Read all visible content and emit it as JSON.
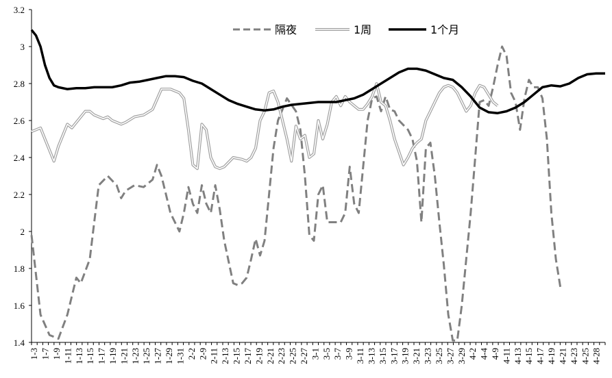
{
  "chart_data": {
    "type": "line",
    "title": "",
    "xlabel": "",
    "ylabel": "",
    "ylim": [
      1.4,
      3.2
    ],
    "yticks": [
      "3.2",
      "3",
      "2.8",
      "2.6",
      "2.4",
      "2.2",
      "2",
      "1.8",
      "1.6",
      "1.4"
    ],
    "grid": false,
    "legend_position": "top-center",
    "x_tick_labels": [
      "1-3",
      "1-7",
      "1-9",
      "1-11",
      "1-13",
      "1-15",
      "1-17",
      "1-19",
      "1-21",
      "1-23",
      "1-25",
      "1-27",
      "1-29",
      "1-31",
      "2-2",
      "2-9",
      "2-11",
      "2-13",
      "2-15",
      "2-17",
      "2-19",
      "2-21",
      "2-23",
      "2-25",
      "2-27",
      "3-1",
      "3-5",
      "3-7",
      "3-9",
      "3-11",
      "3-13",
      "3-15",
      "3-17",
      "3-19",
      "3-21",
      "3-23",
      "3-25",
      "3-27",
      "3-29",
      "4-2",
      "4-4",
      "4-9",
      "4-11",
      "4-13",
      "4-15",
      "4-17",
      "4-19",
      "4-21",
      "4-23",
      "4-25",
      "4-28"
    ],
    "series": [
      {
        "name": "隔夜",
        "color": "#808080",
        "style": "dashed",
        "values": [
          [
            0,
            1.98
          ],
          [
            2,
            1.55
          ],
          [
            4,
            1.44
          ],
          [
            6,
            1.42
          ],
          [
            8,
            1.55
          ],
          [
            10,
            1.75
          ],
          [
            11,
            1.72
          ],
          [
            13,
            1.85
          ],
          [
            14,
            2.05
          ],
          [
            15,
            2.25
          ],
          [
            17,
            2.3
          ],
          [
            19,
            2.25
          ],
          [
            20,
            2.18
          ],
          [
            21,
            2.22
          ],
          [
            23,
            2.25
          ],
          [
            25,
            2.24
          ],
          [
            27,
            2.28
          ],
          [
            28,
            2.36
          ],
          [
            29,
            2.3
          ],
          [
            30,
            2.2
          ],
          [
            31,
            2.1
          ],
          [
            33,
            2.0
          ],
          [
            34,
            2.1
          ],
          [
            35,
            2.24
          ],
          [
            36,
            2.15
          ],
          [
            37,
            2.1
          ],
          [
            38,
            2.25
          ],
          [
            39,
            2.15
          ],
          [
            40,
            2.1
          ],
          [
            41,
            2.25
          ],
          [
            42,
            2.12
          ],
          [
            43,
            1.95
          ],
          [
            45,
            1.72
          ],
          [
            46,
            1.71
          ],
          [
            47,
            1.72
          ],
          [
            48,
            1.75
          ],
          [
            49,
            1.85
          ],
          [
            50,
            1.96
          ],
          [
            51,
            1.87
          ],
          [
            52,
            1.95
          ],
          [
            53,
            2.2
          ],
          [
            54,
            2.45
          ],
          [
            55,
            2.6
          ],
          [
            56,
            2.66
          ],
          [
            57,
            2.72
          ],
          [
            59,
            2.65
          ],
          [
            60,
            2.55
          ],
          [
            61,
            2.3
          ],
          [
            62,
            1.98
          ],
          [
            63,
            1.95
          ],
          [
            64,
            2.2
          ],
          [
            65,
            2.25
          ],
          [
            66,
            2.05
          ],
          [
            68,
            2.05
          ],
          [
            69,
            2.05
          ],
          [
            70,
            2.1
          ],
          [
            71,
            2.35
          ],
          [
            72,
            2.15
          ],
          [
            73,
            2.1
          ],
          [
            74,
            2.35
          ],
          [
            75,
            2.6
          ],
          [
            76,
            2.72
          ],
          [
            77,
            2.73
          ],
          [
            78,
            2.65
          ],
          [
            79,
            2.73
          ],
          [
            80,
            2.66
          ],
          [
            81,
            2.65
          ],
          [
            82,
            2.6
          ],
          [
            84,
            2.55
          ],
          [
            85,
            2.5
          ],
          [
            86,
            2.38
          ],
          [
            87,
            2.05
          ],
          [
            88,
            2.45
          ],
          [
            89,
            2.48
          ],
          [
            90,
            2.3
          ],
          [
            91,
            2.05
          ],
          [
            92,
            1.82
          ],
          [
            93,
            1.55
          ],
          [
            94,
            1.41
          ],
          [
            95,
            1.41
          ],
          [
            96,
            1.6
          ],
          [
            97,
            1.85
          ],
          [
            98,
            2.1
          ],
          [
            99,
            2.4
          ],
          [
            100,
            2.7
          ],
          [
            101,
            2.71
          ],
          [
            102,
            2.68
          ],
          [
            103,
            2.78
          ],
          [
            104,
            2.9
          ],
          [
            105,
            3.0
          ],
          [
            106,
            2.95
          ],
          [
            107,
            2.75
          ],
          [
            108,
            2.7
          ],
          [
            109,
            2.55
          ],
          [
            110,
            2.72
          ],
          [
            111,
            2.82
          ],
          [
            112,
            2.78
          ],
          [
            113,
            2.78
          ],
          [
            114,
            2.72
          ],
          [
            115,
            2.5
          ],
          [
            116,
            2.1
          ],
          [
            117,
            1.85
          ],
          [
            118,
            1.7
          ]
        ]
      },
      {
        "name": "1周",
        "color": "#a0a0a0",
        "style": "double",
        "values": [
          [
            0,
            2.54
          ],
          [
            2,
            2.56
          ],
          [
            3,
            2.5
          ],
          [
            5,
            2.38
          ],
          [
            6,
            2.46
          ],
          [
            8,
            2.58
          ],
          [
            9,
            2.56
          ],
          [
            11,
            2.62
          ],
          [
            12,
            2.65
          ],
          [
            13,
            2.65
          ],
          [
            14,
            2.63
          ],
          [
            16,
            2.61
          ],
          [
            17,
            2.62
          ],
          [
            18,
            2.6
          ],
          [
            20,
            2.58
          ],
          [
            21,
            2.59
          ],
          [
            23,
            2.62
          ],
          [
            25,
            2.63
          ],
          [
            27,
            2.66
          ],
          [
            29,
            2.77
          ],
          [
            31,
            2.77
          ],
          [
            33,
            2.75
          ],
          [
            34,
            2.72
          ],
          [
            35,
            2.55
          ],
          [
            36,
            2.36
          ],
          [
            37,
            2.34
          ],
          [
            38,
            2.58
          ],
          [
            39,
            2.55
          ],
          [
            40,
            2.4
          ],
          [
            41,
            2.35
          ],
          [
            42,
            2.34
          ],
          [
            43,
            2.35
          ],
          [
            45,
            2.4
          ],
          [
            47,
            2.39
          ],
          [
            48,
            2.38
          ],
          [
            49,
            2.4
          ],
          [
            50,
            2.45
          ],
          [
            51,
            2.6
          ],
          [
            52,
            2.65
          ],
          [
            53,
            2.75
          ],
          [
            54,
            2.76
          ],
          [
            55,
            2.7
          ],
          [
            56,
            2.6
          ],
          [
            57,
            2.5
          ],
          [
            58,
            2.38
          ],
          [
            59,
            2.57
          ],
          [
            60,
            2.5
          ],
          [
            61,
            2.52
          ],
          [
            62,
            2.4
          ],
          [
            63,
            2.42
          ],
          [
            64,
            2.6
          ],
          [
            65,
            2.5
          ],
          [
            66,
            2.58
          ],
          [
            67,
            2.7
          ],
          [
            68,
            2.73
          ],
          [
            69,
            2.68
          ],
          [
            70,
            2.73
          ],
          [
            71,
            2.7
          ],
          [
            72,
            2.68
          ],
          [
            73,
            2.66
          ],
          [
            74,
            2.66
          ],
          [
            75,
            2.69
          ],
          [
            76,
            2.73
          ],
          [
            77,
            2.8
          ],
          [
            78,
            2.7
          ],
          [
            79,
            2.68
          ],
          [
            80,
            2.6
          ],
          [
            81,
            2.5
          ],
          [
            82,
            2.43
          ],
          [
            83,
            2.36
          ],
          [
            84,
            2.4
          ],
          [
            85,
            2.45
          ],
          [
            86,
            2.48
          ],
          [
            87,
            2.5
          ],
          [
            88,
            2.6
          ],
          [
            89,
            2.65
          ],
          [
            90,
            2.7
          ],
          [
            91,
            2.75
          ],
          [
            92,
            2.78
          ],
          [
            93,
            2.79
          ],
          [
            94,
            2.78
          ],
          [
            95,
            2.75
          ],
          [
            96,
            2.7
          ],
          [
            97,
            2.65
          ],
          [
            98,
            2.68
          ],
          [
            99,
            2.75
          ],
          [
            100,
            2.79
          ],
          [
            101,
            2.78
          ],
          [
            102,
            2.74
          ],
          [
            103,
            2.7
          ],
          [
            104,
            2.68
          ]
        ]
      },
      {
        "name": "1个月",
        "color": "#000000",
        "style": "solid",
        "values": [
          [
            0,
            3.09
          ],
          [
            1,
            3.06
          ],
          [
            2,
            3.0
          ],
          [
            3,
            2.9
          ],
          [
            4,
            2.83
          ],
          [
            5,
            2.79
          ],
          [
            6,
            2.78
          ],
          [
            8,
            2.77
          ],
          [
            10,
            2.775
          ],
          [
            12,
            2.775
          ],
          [
            14,
            2.78
          ],
          [
            16,
            2.78
          ],
          [
            18,
            2.78
          ],
          [
            20,
            2.79
          ],
          [
            22,
            2.805
          ],
          [
            24,
            2.81
          ],
          [
            26,
            2.82
          ],
          [
            28,
            2.83
          ],
          [
            30,
            2.84
          ],
          [
            32,
            2.84
          ],
          [
            34,
            2.835
          ],
          [
            36,
            2.815
          ],
          [
            38,
            2.8
          ],
          [
            40,
            2.77
          ],
          [
            42,
            2.74
          ],
          [
            44,
            2.71
          ],
          [
            46,
            2.69
          ],
          [
            48,
            2.675
          ],
          [
            50,
            2.66
          ],
          [
            52,
            2.655
          ],
          [
            54,
            2.66
          ],
          [
            56,
            2.675
          ],
          [
            58,
            2.685
          ],
          [
            60,
            2.69
          ],
          [
            62,
            2.695
          ],
          [
            64,
            2.7
          ],
          [
            66,
            2.7
          ],
          [
            68,
            2.7
          ],
          [
            70,
            2.71
          ],
          [
            72,
            2.72
          ],
          [
            74,
            2.74
          ],
          [
            76,
            2.77
          ],
          [
            78,
            2.8
          ],
          [
            80,
            2.83
          ],
          [
            82,
            2.86
          ],
          [
            84,
            2.88
          ],
          [
            86,
            2.88
          ],
          [
            88,
            2.87
          ],
          [
            90,
            2.85
          ],
          [
            92,
            2.83
          ],
          [
            94,
            2.82
          ],
          [
            96,
            2.78
          ],
          [
            98,
            2.73
          ],
          [
            100,
            2.67
          ],
          [
            102,
            2.645
          ],
          [
            104,
            2.64
          ],
          [
            106,
            2.65
          ],
          [
            108,
            2.67
          ],
          [
            110,
            2.7
          ],
          [
            112,
            2.74
          ],
          [
            114,
            2.78
          ],
          [
            116,
            2.79
          ],
          [
            118,
            2.785
          ],
          [
            120,
            2.8
          ],
          [
            122,
            2.83
          ],
          [
            124,
            2.85
          ],
          [
            126,
            2.855
          ],
          [
            128,
            2.855
          ]
        ]
      }
    ]
  }
}
